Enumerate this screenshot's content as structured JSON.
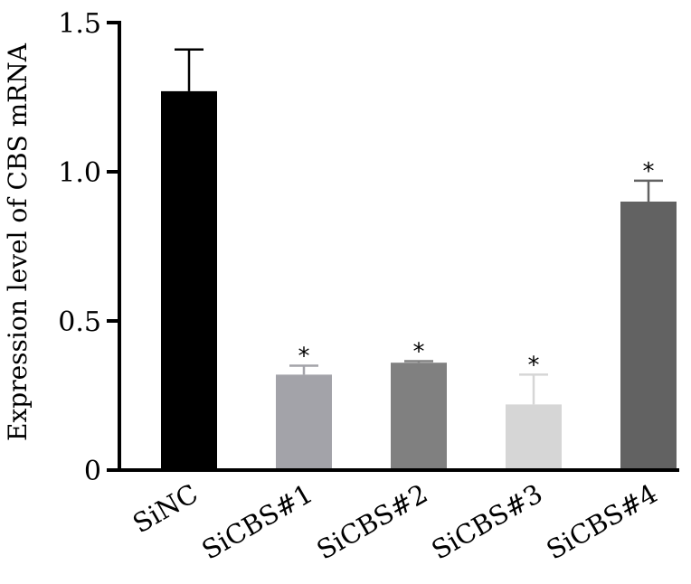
{
  "chart_data": {
    "type": "bar",
    "title": "",
    "xlabel": "",
    "ylabel": "Expression level of CBS mRNA",
    "categories": [
      "SiNC",
      "SiCBS#1",
      "SiCBS#2",
      "SiCBS#3",
      "SiCBS#4"
    ],
    "values": [
      1.27,
      0.32,
      0.36,
      0.22,
      0.9
    ],
    "errors": [
      0.14,
      0.03,
      0.005,
      0.1,
      0.07
    ],
    "significance": [
      "",
      "*",
      "*",
      "*",
      "*"
    ],
    "bar_colors": [
      "#000000",
      "#a3a3a9",
      "#808080",
      "#d6d6d6",
      "#626262"
    ],
    "yticks": [
      0,
      0.5,
      1.0,
      1.5
    ],
    "ytick_labels": [
      "0",
      "0.5",
      "1.0",
      "1.5"
    ],
    "ylim": [
      0,
      1.5
    ],
    "grid": false,
    "legend": "none"
  }
}
